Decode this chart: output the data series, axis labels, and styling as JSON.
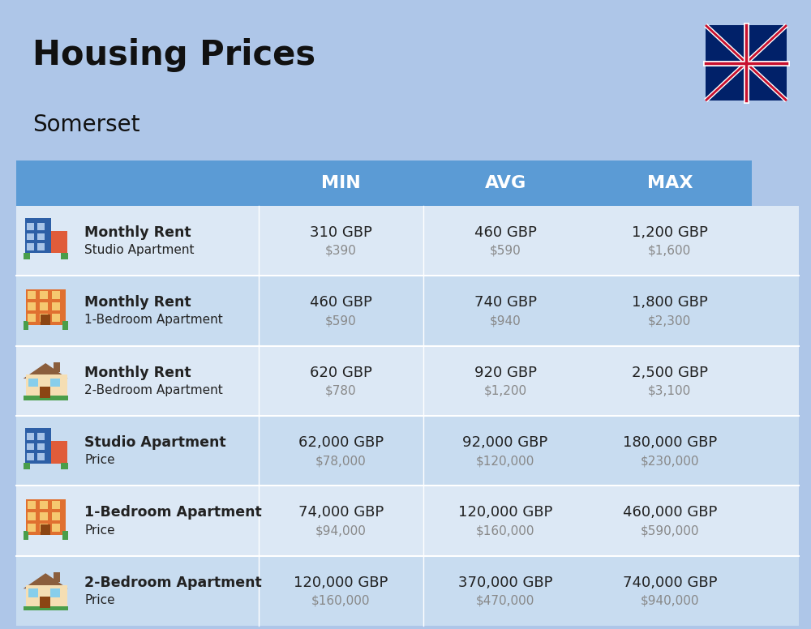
{
  "title": "Housing Prices",
  "subtitle": "Somerset",
  "background_color": "#aec6e8",
  "header_color": "#5b9bd5",
  "header_text_color": "#ffffff",
  "row_colors": [
    "#dce8f5",
    "#c8dcf0"
  ],
  "col_headers": [
    "MIN",
    "AVG",
    "MAX"
  ],
  "rows": [
    {
      "bold_label": "Monthly Rent",
      "sub_label": "Studio Apartment",
      "min_gbp": "310 GBP",
      "min_usd": "$390",
      "avg_gbp": "460 GBP",
      "avg_usd": "$590",
      "max_gbp": "1,200 GBP",
      "max_usd": "$1,600",
      "icon_type": "studio_blue"
    },
    {
      "bold_label": "Monthly Rent",
      "sub_label": "1-Bedroom Apartment",
      "min_gbp": "460 GBP",
      "min_usd": "$590",
      "avg_gbp": "740 GBP",
      "avg_usd": "$940",
      "max_gbp": "1,800 GBP",
      "max_usd": "$2,300",
      "icon_type": "apt_orange"
    },
    {
      "bold_label": "Monthly Rent",
      "sub_label": "2-Bedroom Apartment",
      "min_gbp": "620 GBP",
      "min_usd": "$780",
      "avg_gbp": "920 GBP",
      "avg_usd": "$1,200",
      "max_gbp": "2,500 GBP",
      "max_usd": "$3,100",
      "icon_type": "house_tan"
    },
    {
      "bold_label": "Studio Apartment",
      "sub_label": "Price",
      "min_gbp": "62,000 GBP",
      "min_usd": "$78,000",
      "avg_gbp": "92,000 GBP",
      "avg_usd": "$120,000",
      "max_gbp": "180,000 GBP",
      "max_usd": "$230,000",
      "icon_type": "studio_blue"
    },
    {
      "bold_label": "1-Bedroom Apartment",
      "sub_label": "Price",
      "min_gbp": "74,000 GBP",
      "min_usd": "$94,000",
      "avg_gbp": "120,000 GBP",
      "avg_usd": "$160,000",
      "max_gbp": "460,000 GBP",
      "max_usd": "$590,000",
      "icon_type": "apt_orange"
    },
    {
      "bold_label": "2-Bedroom Apartment",
      "sub_label": "Price",
      "min_gbp": "120,000 GBP",
      "min_usd": "$160,000",
      "avg_gbp": "370,000 GBP",
      "avg_usd": "$470,000",
      "max_gbp": "740,000 GBP",
      "max_usd": "$940,000",
      "icon_type": "house_tan"
    }
  ],
  "usd_color": "#888888",
  "text_color": "#222222",
  "figsize": [
    10.0,
    7.76
  ],
  "dpi": 100
}
